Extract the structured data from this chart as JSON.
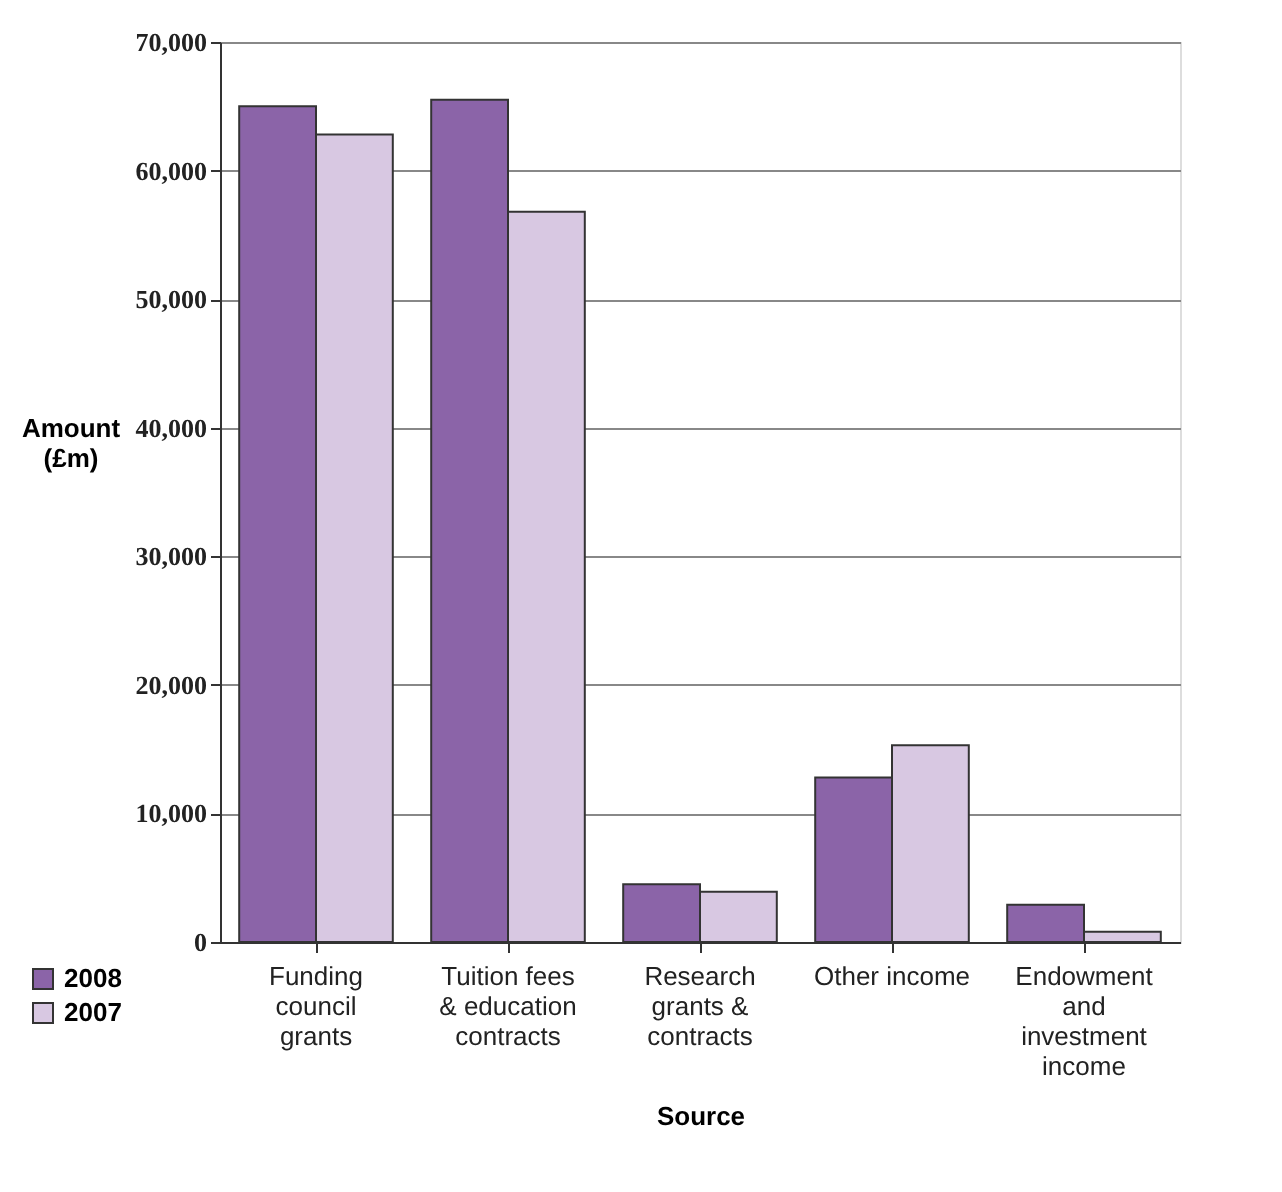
{
  "chart_data": {
    "type": "bar",
    "xlabel": "Source",
    "ylabel": "Amount (£m)",
    "categories": [
      "Funding council grants",
      "Tuition fees & education contracts",
      "Research grants & contracts",
      "Other income",
      "Endowment and investment income"
    ],
    "series": [
      {
        "name": "2008",
        "color": "#8b64a8",
        "values": [
          65000,
          65500,
          4500,
          12800,
          2900
        ]
      },
      {
        "name": "2007",
        "color": "#d8c8e2",
        "values": [
          62800,
          56800,
          3900,
          15300,
          800
        ]
      }
    ],
    "ylim": [
      0,
      70000
    ],
    "yticks": [
      {
        "value": 0,
        "label": "0"
      },
      {
        "value": 10000,
        "label": "10,000"
      },
      {
        "value": 20000,
        "label": "20,000"
      },
      {
        "value": 30000,
        "label": "30,000"
      },
      {
        "value": 40000,
        "label": "40,000"
      },
      {
        "value": 50000,
        "label": "50,000"
      },
      {
        "value": 60000,
        "label": "60,000"
      },
      {
        "value": 70000,
        "label": "70,000"
      }
    ],
    "grid": "y",
    "legend": "bottom left"
  }
}
